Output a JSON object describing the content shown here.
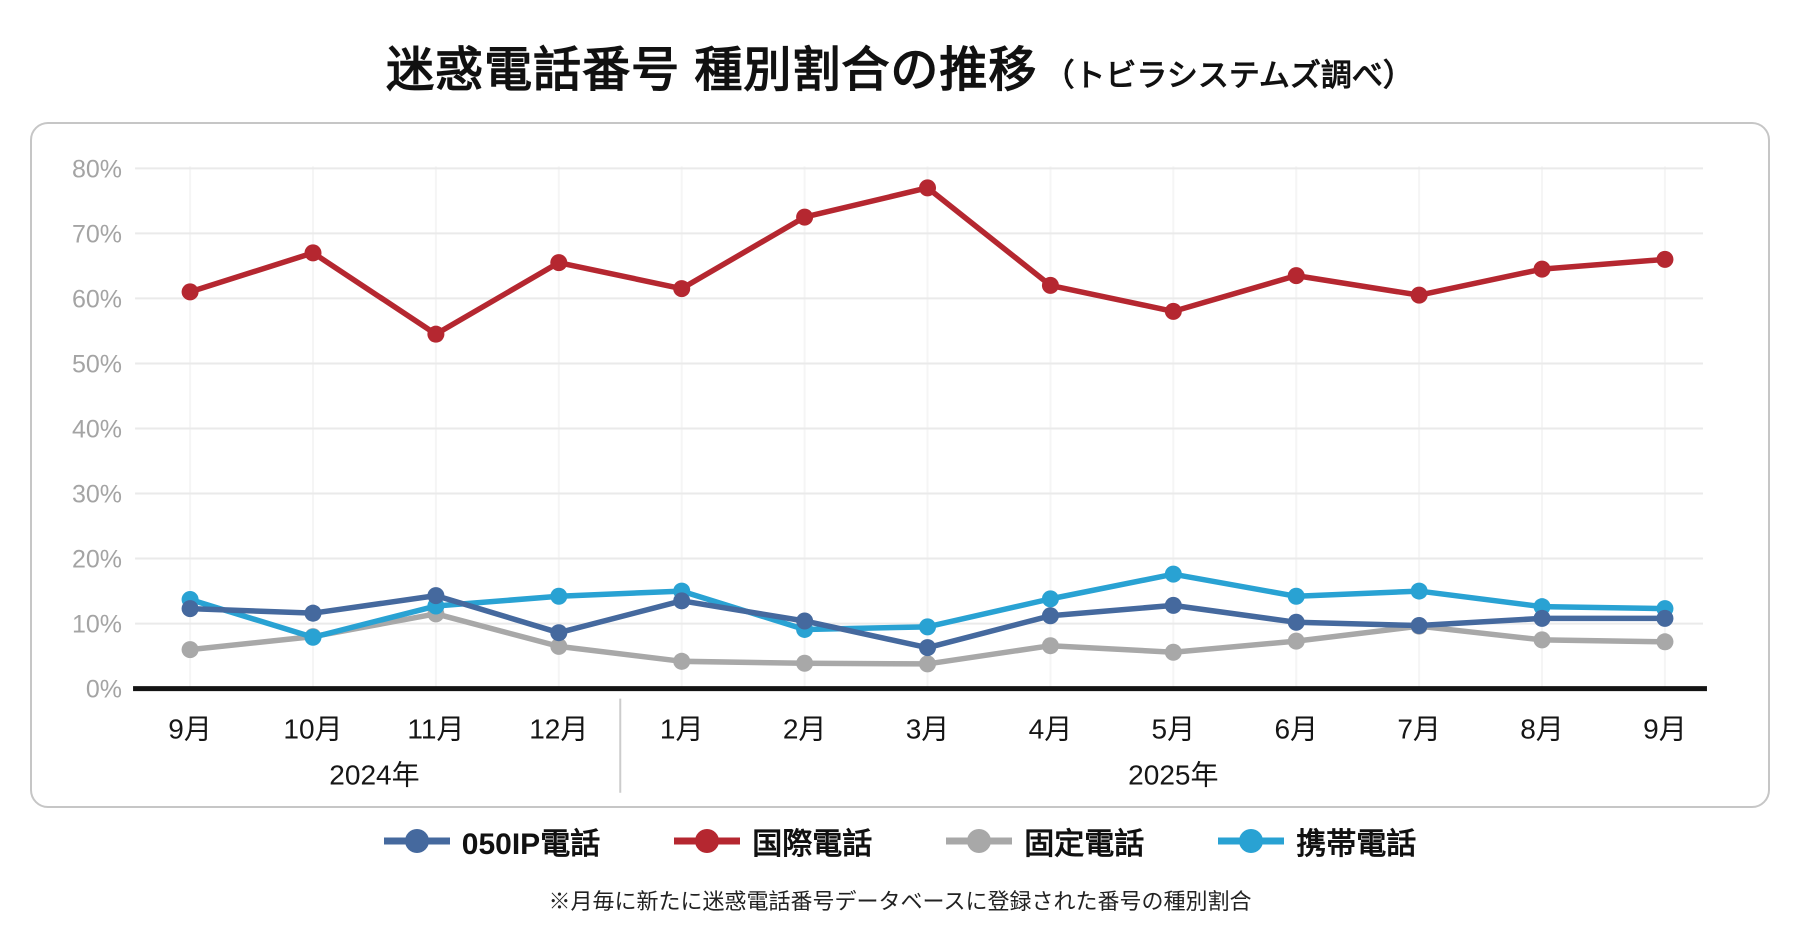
{
  "title": {
    "main": "迷惑電話番号 種別割合の推移",
    "sub": "（トビラシステムズ調べ）"
  },
  "footnote": "※月毎に新たに迷惑電話番号データベースに登録された番号の種別割合",
  "chart_data": {
    "type": "line",
    "categories": [
      "9月",
      "10月",
      "11月",
      "12月",
      "1月",
      "2月",
      "3月",
      "4月",
      "5月",
      "6月",
      "7月",
      "8月",
      "9月"
    ],
    "year_groups": [
      {
        "label": "2024年",
        "from": 0,
        "to": 3
      },
      {
        "label": "2025年",
        "from": 4,
        "to": 12
      }
    ],
    "series": [
      {
        "name": "050IP電話",
        "color": "#45699e",
        "values": [
          12.3,
          11.6,
          14.3,
          8.6,
          13.5,
          10.4,
          6.3,
          11.2,
          12.8,
          10.2,
          9.7,
          10.8,
          10.8
        ]
      },
      {
        "name": "国際電話",
        "color": "#b52730",
        "values": [
          61,
          67,
          54.5,
          65.5,
          61.5,
          72.5,
          77,
          62,
          58,
          63.5,
          60.5,
          64.5,
          66
        ]
      },
      {
        "name": "固定電話",
        "color": "#a8a8a8",
        "values": [
          6.0,
          8.0,
          11.5,
          6.5,
          4.2,
          3.9,
          3.8,
          6.6,
          5.6,
          7.3,
          9.6,
          7.5,
          7.2
        ]
      },
      {
        "name": "携帯電話",
        "color": "#29a2d3",
        "values": [
          13.7,
          7.9,
          12.7,
          14.2,
          15.0,
          9.1,
          9.5,
          13.8,
          17.6,
          14.2,
          15.0,
          12.6,
          12.3
        ]
      }
    ],
    "ylim": [
      0,
      80
    ],
    "ytick_step": 10,
    "ytick_labels": [
      "0%",
      "10%",
      "20%",
      "30%",
      "40%",
      "50%",
      "60%",
      "70%",
      "80%"
    ],
    "grid": "horizontal",
    "legend_position": "bottom",
    "colors": {
      "axis": "#141414",
      "gridline": "#eaeaea",
      "faint_vertical": "#f5f5f5",
      "ytick_text": "#a4a4a4",
      "xtick_text": "#161616",
      "year_separator": "#cccccc"
    }
  }
}
